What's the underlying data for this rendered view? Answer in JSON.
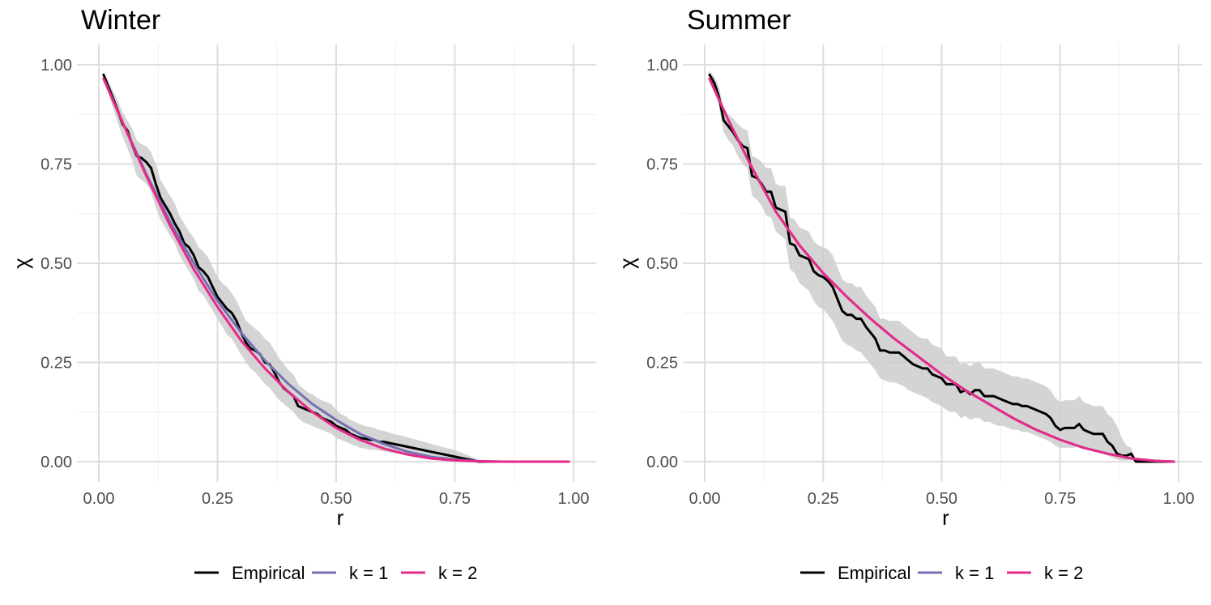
{
  "colors": {
    "Empirical": "#000000",
    "k = 1": "#7570b3",
    "k = 2": "#e7298a",
    "band": "#cccccc",
    "grid_major": "#dedede",
    "grid_minor": "#efefef"
  },
  "chart_data": [
    {
      "type": "line",
      "title": "Winter",
      "xlabel": "r",
      "ylabel": "χ",
      "xlim": [
        0,
        1
      ],
      "ylim": [
        0,
        1
      ],
      "xticks": [
        "0.00",
        "0.25",
        "0.50",
        "0.75",
        "1.00"
      ],
      "yticks": [
        "0.00",
        "0.25",
        "0.50",
        "0.75",
        "1.00"
      ],
      "grid": true,
      "legend_position": "bottom",
      "legend": [
        "Empirical",
        "k = 1",
        "k = 2"
      ],
      "series": [
        {
          "name": "Empirical",
          "x": [
            0.01,
            0.02,
            0.03,
            0.04,
            0.05,
            0.06,
            0.07,
            0.08,
            0.09,
            0.1,
            0.11,
            0.12,
            0.13,
            0.14,
            0.15,
            0.16,
            0.17,
            0.18,
            0.19,
            0.2,
            0.21,
            0.22,
            0.23,
            0.24,
            0.25,
            0.26,
            0.27,
            0.28,
            0.29,
            0.3,
            0.31,
            0.32,
            0.33,
            0.34,
            0.35,
            0.36,
            0.37,
            0.38,
            0.39,
            0.4,
            0.41,
            0.42,
            0.43,
            0.44,
            0.45,
            0.46,
            0.47,
            0.48,
            0.49,
            0.5,
            0.51,
            0.52,
            0.53,
            0.54,
            0.55,
            0.56,
            0.57,
            0.58,
            0.59,
            0.6,
            0.62,
            0.64,
            0.66,
            0.68,
            0.7,
            0.72,
            0.74,
            0.76,
            0.78,
            0.8,
            0.84,
            0.88,
            0.92,
            0.96,
            0.99
          ],
          "y": [
            0.975,
            0.945,
            0.915,
            0.885,
            0.85,
            0.835,
            0.8,
            0.77,
            0.765,
            0.755,
            0.74,
            0.7,
            0.665,
            0.645,
            0.625,
            0.6,
            0.58,
            0.55,
            0.54,
            0.52,
            0.49,
            0.48,
            0.465,
            0.44,
            0.415,
            0.4,
            0.385,
            0.375,
            0.355,
            0.325,
            0.3,
            0.285,
            0.28,
            0.27,
            0.25,
            0.245,
            0.225,
            0.2,
            0.185,
            0.175,
            0.165,
            0.14,
            0.135,
            0.13,
            0.125,
            0.12,
            0.11,
            0.105,
            0.1,
            0.09,
            0.085,
            0.08,
            0.07,
            0.065,
            0.06,
            0.058,
            0.055,
            0.055,
            0.05,
            0.05,
            0.045,
            0.04,
            0.035,
            0.03,
            0.025,
            0.02,
            0.015,
            0.01,
            0.005,
            0.0,
            0.0,
            0.0,
            0.0,
            0.0,
            0.0
          ],
          "lower": [
            0.96,
            0.93,
            0.89,
            0.855,
            0.82,
            0.79,
            0.76,
            0.72,
            0.71,
            0.7,
            0.68,
            0.64,
            0.61,
            0.59,
            0.57,
            0.55,
            0.52,
            0.5,
            0.48,
            0.46,
            0.43,
            0.42,
            0.4,
            0.38,
            0.36,
            0.34,
            0.32,
            0.31,
            0.29,
            0.27,
            0.25,
            0.235,
            0.225,
            0.21,
            0.195,
            0.185,
            0.17,
            0.155,
            0.145,
            0.135,
            0.125,
            0.11,
            0.1,
            0.095,
            0.09,
            0.085,
            0.08,
            0.075,
            0.07,
            0.06,
            0.055,
            0.05,
            0.045,
            0.04,
            0.035,
            0.033,
            0.03,
            0.03,
            0.028,
            0.026,
            0.022,
            0.018,
            0.014,
            0.01,
            0.007,
            0.004,
            0.002,
            0.0,
            0.0,
            0.0,
            0.0,
            0.0,
            0.0,
            0.0,
            0.0
          ],
          "upper": [
            0.98,
            0.96,
            0.935,
            0.91,
            0.88,
            0.86,
            0.84,
            0.81,
            0.8,
            0.795,
            0.78,
            0.75,
            0.71,
            0.69,
            0.67,
            0.65,
            0.62,
            0.6,
            0.58,
            0.565,
            0.54,
            0.53,
            0.515,
            0.49,
            0.465,
            0.45,
            0.44,
            0.425,
            0.405,
            0.38,
            0.355,
            0.345,
            0.335,
            0.325,
            0.31,
            0.3,
            0.28,
            0.26,
            0.245,
            0.23,
            0.22,
            0.195,
            0.185,
            0.175,
            0.17,
            0.16,
            0.155,
            0.15,
            0.145,
            0.13,
            0.12,
            0.115,
            0.105,
            0.1,
            0.095,
            0.09,
            0.088,
            0.085,
            0.08,
            0.078,
            0.07,
            0.065,
            0.058,
            0.052,
            0.045,
            0.038,
            0.032,
            0.025,
            0.015,
            0.005,
            0.0,
            0.0,
            0.0,
            0.0,
            0.0
          ]
        },
        {
          "name": "k = 1",
          "x": [
            0.01,
            0.05,
            0.1,
            0.15,
            0.2,
            0.25,
            0.3,
            0.35,
            0.4,
            0.45,
            0.5,
            0.55,
            0.6,
            0.65,
            0.7,
            0.75,
            0.8,
            0.85,
            0.9,
            0.95,
            0.99
          ],
          "y": [
            0.965,
            0.855,
            0.725,
            0.605,
            0.5,
            0.405,
            0.325,
            0.255,
            0.195,
            0.145,
            0.105,
            0.07,
            0.045,
            0.025,
            0.012,
            0.005,
            0.001,
            0.0,
            0.0,
            0.0,
            0.0
          ]
        },
        {
          "name": "k = 2",
          "x": [
            0.01,
            0.05,
            0.1,
            0.15,
            0.2,
            0.25,
            0.3,
            0.35,
            0.4,
            0.45,
            0.5,
            0.55,
            0.6,
            0.65,
            0.7,
            0.75,
            0.8,
            0.85,
            0.9,
            0.95,
            0.99
          ],
          "y": [
            0.965,
            0.855,
            0.72,
            0.595,
            0.485,
            0.39,
            0.305,
            0.235,
            0.175,
            0.125,
            0.085,
            0.055,
            0.033,
            0.018,
            0.008,
            0.003,
            0.001,
            0.0,
            0.0,
            0.0,
            0.0
          ]
        }
      ]
    },
    {
      "type": "line",
      "title": "Summer",
      "xlabel": "r",
      "ylabel": "χ",
      "xlim": [
        0,
        1
      ],
      "ylim": [
        0,
        1
      ],
      "xticks": [
        "0.00",
        "0.25",
        "0.50",
        "0.75",
        "1.00"
      ],
      "yticks": [
        "0.00",
        "0.25",
        "0.50",
        "0.75",
        "1.00"
      ],
      "grid": true,
      "legend_position": "bottom",
      "legend": [
        "Empirical",
        "k = 1",
        "k = 2"
      ],
      "series": [
        {
          "name": "Empirical",
          "x": [
            0.01,
            0.02,
            0.03,
            0.04,
            0.05,
            0.06,
            0.07,
            0.08,
            0.09,
            0.1,
            0.11,
            0.12,
            0.13,
            0.14,
            0.15,
            0.16,
            0.17,
            0.18,
            0.19,
            0.2,
            0.21,
            0.22,
            0.23,
            0.24,
            0.25,
            0.26,
            0.27,
            0.28,
            0.29,
            0.3,
            0.31,
            0.32,
            0.33,
            0.34,
            0.35,
            0.36,
            0.37,
            0.38,
            0.39,
            0.4,
            0.41,
            0.42,
            0.43,
            0.44,
            0.45,
            0.46,
            0.47,
            0.48,
            0.49,
            0.5,
            0.51,
            0.52,
            0.53,
            0.54,
            0.55,
            0.56,
            0.57,
            0.58,
            0.59,
            0.6,
            0.61,
            0.62,
            0.63,
            0.64,
            0.65,
            0.66,
            0.67,
            0.68,
            0.69,
            0.7,
            0.71,
            0.72,
            0.73,
            0.74,
            0.75,
            0.76,
            0.77,
            0.78,
            0.79,
            0.8,
            0.81,
            0.82,
            0.83,
            0.84,
            0.85,
            0.86,
            0.87,
            0.88,
            0.89,
            0.9,
            0.91,
            0.92,
            0.95,
            0.99
          ],
          "y": [
            0.975,
            0.955,
            0.92,
            0.86,
            0.845,
            0.83,
            0.81,
            0.795,
            0.79,
            0.72,
            0.715,
            0.7,
            0.68,
            0.68,
            0.64,
            0.635,
            0.63,
            0.55,
            0.545,
            0.52,
            0.515,
            0.51,
            0.48,
            0.47,
            0.465,
            0.455,
            0.44,
            0.41,
            0.38,
            0.37,
            0.37,
            0.36,
            0.36,
            0.34,
            0.325,
            0.31,
            0.28,
            0.28,
            0.275,
            0.275,
            0.275,
            0.265,
            0.255,
            0.245,
            0.24,
            0.235,
            0.235,
            0.22,
            0.215,
            0.21,
            0.195,
            0.195,
            0.195,
            0.175,
            0.18,
            0.17,
            0.18,
            0.18,
            0.165,
            0.165,
            0.165,
            0.16,
            0.155,
            0.15,
            0.145,
            0.145,
            0.14,
            0.14,
            0.135,
            0.13,
            0.125,
            0.12,
            0.11,
            0.09,
            0.08,
            0.085,
            0.085,
            0.085,
            0.095,
            0.08,
            0.075,
            0.07,
            0.07,
            0.07,
            0.05,
            0.04,
            0.02,
            0.015,
            0.015,
            0.02,
            0.0,
            0.0,
            0.0,
            0.0
          ],
          "lower": [
            0.96,
            0.94,
            0.895,
            0.83,
            0.81,
            0.795,
            0.77,
            0.75,
            0.74,
            0.67,
            0.66,
            0.645,
            0.62,
            0.615,
            0.58,
            0.57,
            0.56,
            0.485,
            0.475,
            0.45,
            0.44,
            0.43,
            0.405,
            0.39,
            0.385,
            0.37,
            0.355,
            0.33,
            0.305,
            0.295,
            0.29,
            0.28,
            0.275,
            0.26,
            0.245,
            0.23,
            0.21,
            0.205,
            0.2,
            0.2,
            0.195,
            0.19,
            0.18,
            0.175,
            0.17,
            0.165,
            0.16,
            0.15,
            0.145,
            0.14,
            0.13,
            0.125,
            0.125,
            0.11,
            0.115,
            0.105,
            0.11,
            0.11,
            0.1,
            0.1,
            0.095,
            0.09,
            0.09,
            0.085,
            0.08,
            0.08,
            0.075,
            0.075,
            0.07,
            0.065,
            0.06,
            0.055,
            0.05,
            0.04,
            0.035,
            0.035,
            0.035,
            0.035,
            0.04,
            0.035,
            0.03,
            0.025,
            0.025,
            0.02,
            0.015,
            0.01,
            0.005,
            0.003,
            0.003,
            0.005,
            0.0,
            0.0,
            0.0,
            0.0
          ],
          "upper": [
            0.985,
            0.97,
            0.945,
            0.89,
            0.875,
            0.865,
            0.85,
            0.84,
            0.835,
            0.77,
            0.765,
            0.755,
            0.74,
            0.74,
            0.7,
            0.695,
            0.695,
            0.615,
            0.61,
            0.59,
            0.585,
            0.58,
            0.555,
            0.545,
            0.54,
            0.535,
            0.52,
            0.49,
            0.46,
            0.45,
            0.45,
            0.44,
            0.44,
            0.42,
            0.405,
            0.39,
            0.36,
            0.36,
            0.355,
            0.355,
            0.355,
            0.345,
            0.335,
            0.325,
            0.315,
            0.31,
            0.31,
            0.295,
            0.29,
            0.285,
            0.265,
            0.265,
            0.265,
            0.245,
            0.25,
            0.24,
            0.25,
            0.25,
            0.235,
            0.235,
            0.235,
            0.23,
            0.225,
            0.22,
            0.215,
            0.215,
            0.21,
            0.21,
            0.205,
            0.2,
            0.195,
            0.19,
            0.18,
            0.16,
            0.15,
            0.155,
            0.155,
            0.155,
            0.165,
            0.15,
            0.145,
            0.14,
            0.14,
            0.14,
            0.12,
            0.11,
            0.09,
            0.06,
            0.04,
            0.035,
            0.0,
            0.0,
            0.0,
            0.0
          ]
        },
        {
          "name": "k = 1",
          "x": [
            0.01,
            0.05,
            0.1,
            0.15,
            0.2,
            0.25,
            0.3,
            0.35,
            0.4,
            0.45,
            0.5,
            0.55,
            0.6,
            0.65,
            0.7,
            0.75,
            0.8,
            0.85,
            0.9,
            0.95,
            0.99
          ],
          "y": [
            0.965,
            0.86,
            0.74,
            0.63,
            0.545,
            0.475,
            0.415,
            0.36,
            0.31,
            0.265,
            0.22,
            0.18,
            0.145,
            0.11,
            0.08,
            0.055,
            0.035,
            0.02,
            0.008,
            0.002,
            0.0
          ]
        },
        {
          "name": "k = 2",
          "x": [
            0.01,
            0.05,
            0.1,
            0.15,
            0.2,
            0.25,
            0.3,
            0.35,
            0.4,
            0.45,
            0.5,
            0.55,
            0.6,
            0.65,
            0.7,
            0.75,
            0.8,
            0.85,
            0.9,
            0.95,
            0.99
          ],
          "y": [
            0.965,
            0.86,
            0.74,
            0.63,
            0.545,
            0.475,
            0.415,
            0.36,
            0.31,
            0.265,
            0.22,
            0.18,
            0.145,
            0.11,
            0.08,
            0.055,
            0.035,
            0.02,
            0.008,
            0.002,
            0.0
          ]
        }
      ]
    }
  ]
}
